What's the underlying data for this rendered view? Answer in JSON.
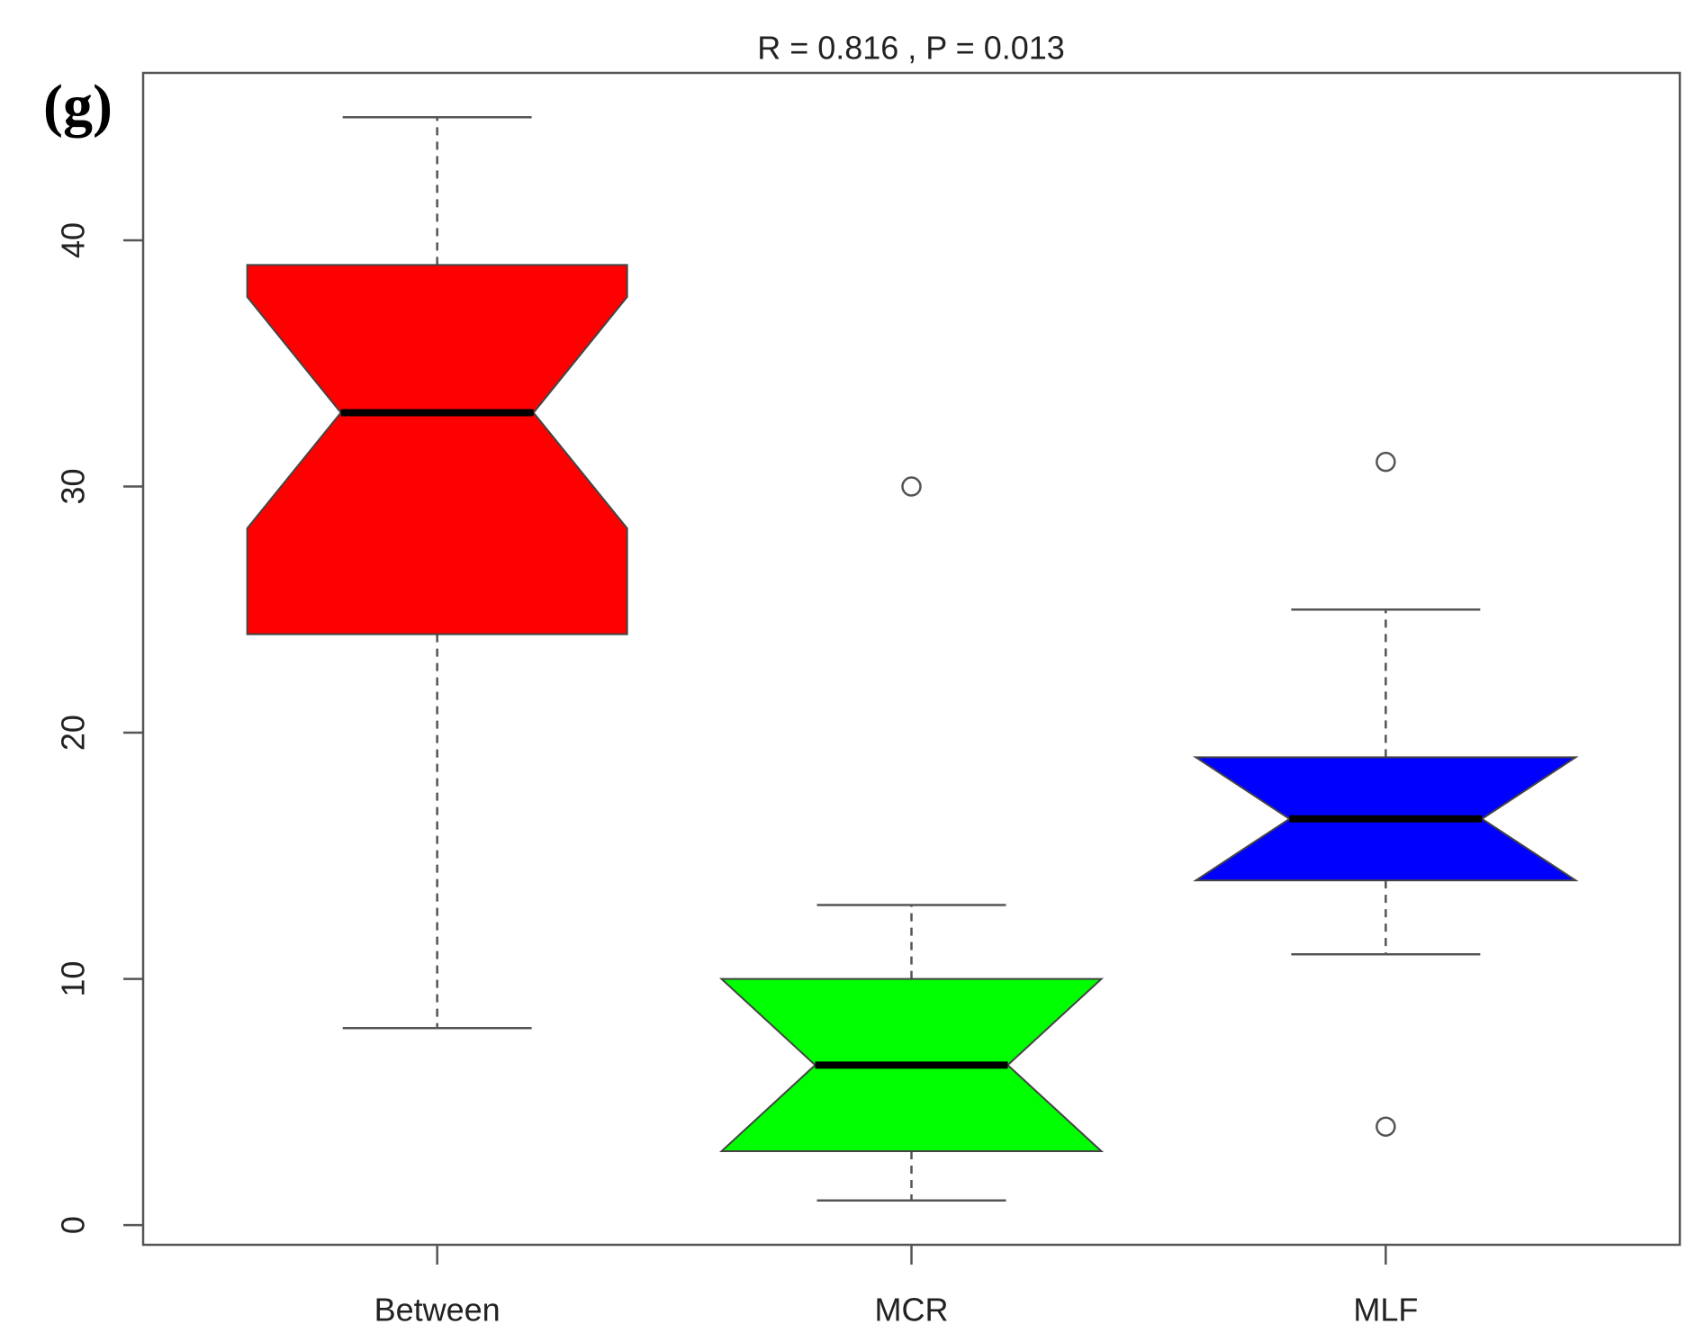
{
  "chart_data": {
    "type": "boxplot",
    "title": "R =  0.816 ,  P =  0.013",
    "panel_label": "(g)",
    "categories": [
      "Between",
      "MCR",
      "MLF"
    ],
    "boxes": [
      {
        "whisker_low": 8,
        "q1": 24,
        "median": 33,
        "q3": 39,
        "whisker_high": 45,
        "notch_low": 28.3,
        "notch_high": 37.7,
        "color": "#ff0000",
        "outliers": []
      },
      {
        "whisker_low": 1,
        "q1": 3,
        "median": 6.5,
        "q3": 10,
        "whisker_high": 13,
        "notch_low": 3,
        "notch_high": 10,
        "color": "#00ff00",
        "outliers": [
          30
        ]
      },
      {
        "whisker_low": 11,
        "q1": 14,
        "median": 16.5,
        "q3": 19,
        "whisker_high": 25,
        "notch_low": 14,
        "notch_high": 19,
        "color": "#0000ff",
        "outliers": [
          31,
          4
        ]
      }
    ],
    "ylim": [
      -0.8,
      46.8
    ],
    "yticks": [
      0,
      10,
      20,
      30,
      40
    ]
  }
}
